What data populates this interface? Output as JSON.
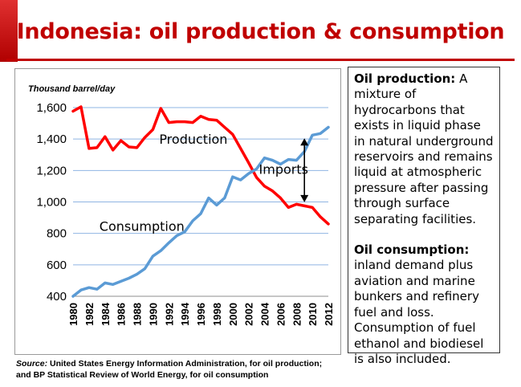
{
  "title": "Indonesia: oil production & consumption",
  "source": {
    "label": "Source:",
    "line1": " United States Energy Information Administration, for oil production;",
    "line2": "and BP Statistical Review of World Energy, for oil consumption"
  },
  "info": {
    "production_term": "Oil production:",
    "production_text": "  A mixture of hydrocarbons that exists in liquid phase in natural underground reservoirs and remains liquid at atmospheric pressure after passing through surface separating facilities.",
    "consumption_term": "Oil consumption:",
    "consumption_text": " inland demand plus aviation and marine bunkers and refinery fuel and loss. Consumption of fuel ethanol and biodiesel is also included."
  },
  "colors": {
    "production": "#ff0000",
    "consumption": "#5b9bd5",
    "gridline": "#8fb4e3",
    "title": "#c00000"
  },
  "chart_data": {
    "type": "line",
    "ylabel": "Thousand barrel/day",
    "ylim": [
      400,
      1600
    ],
    "yticks": [
      400,
      600,
      800,
      1000,
      1200,
      1400,
      1600
    ],
    "ytick_labels": [
      "400",
      "600",
      "800",
      "1,000",
      "1,200",
      "1,400",
      "1,600"
    ],
    "xtick_labels": [
      "1980",
      "1982",
      "1984",
      "1986",
      "1988",
      "1990",
      "1992",
      "1994",
      "1996",
      "1998",
      "2000",
      "2002",
      "2004",
      "2006",
      "2008",
      "2010",
      "2012"
    ],
    "x": [
      1980,
      1981,
      1982,
      1983,
      1984,
      1985,
      1986,
      1987,
      1988,
      1989,
      1990,
      1991,
      1992,
      1993,
      1994,
      1995,
      1996,
      1997,
      1998,
      1999,
      2000,
      2001,
      2002,
      2003,
      2004,
      2005,
      2006,
      2007,
      2008,
      2009,
      2010,
      2011,
      2012
    ],
    "grid": "horizontal",
    "series": [
      {
        "name": "Production",
        "values": [
          1577,
          1605,
          1340,
          1345,
          1415,
          1330,
          1390,
          1350,
          1345,
          1410,
          1460,
          1595,
          1505,
          1510,
          1510,
          1505,
          1545,
          1525,
          1520,
          1475,
          1430,
          1340,
          1250,
          1155,
          1100,
          1070,
          1025,
          965,
          985,
          975,
          965,
          905,
          860
        ]
      },
      {
        "name": "Consumption",
        "values": [
          400,
          440,
          455,
          445,
          485,
          475,
          495,
          515,
          540,
          575,
          655,
          690,
          740,
          785,
          810,
          880,
          925,
          1025,
          980,
          1025,
          1160,
          1140,
          1180,
          1210,
          1280,
          1265,
          1240,
          1270,
          1265,
          1320,
          1425,
          1435,
          1475
        ]
      }
    ],
    "annotations": [
      "Production",
      "Consumption",
      "Imports"
    ]
  }
}
